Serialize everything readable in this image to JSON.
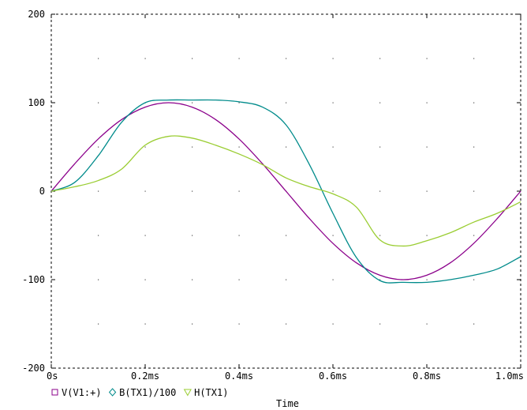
{
  "chart_data": {
    "type": "line",
    "xlabel": "Time",
    "x_unit": "ms",
    "xlim": [
      0,
      1.0
    ],
    "ylim": [
      -200,
      200
    ],
    "x_ticks": [
      0,
      0.2,
      0.4,
      0.6,
      0.8,
      1.0
    ],
    "x_tick_labels": [
      "0s",
      "0.2ms",
      "0.4ms",
      "0.6ms",
      "0.8ms",
      "1.0ms"
    ],
    "y_ticks": [
      -200,
      -100,
      0,
      100,
      200
    ],
    "y_tick_labels": [
      "-200",
      "-100",
      "0",
      "100",
      "200"
    ],
    "grid": "dotted",
    "frame_style": "dashed",
    "legend_position": "bottom-left",
    "series": [
      {
        "name": "V(V1:+)",
        "color": "#8b008b",
        "marker": "square",
        "x": [
          0,
          0.05,
          0.1,
          0.15,
          0.2,
          0.25,
          0.3,
          0.35,
          0.4,
          0.45,
          0.5,
          0.55,
          0.6,
          0.65,
          0.7,
          0.75,
          0.8,
          0.85,
          0.9,
          0.95,
          1.0
        ],
        "values": [
          0,
          31,
          59,
          81,
          95,
          100,
          95,
          81,
          59,
          31,
          0,
          -31,
          -59,
          -81,
          -95,
          -100,
          -95,
          -81,
          -59,
          -31,
          0
        ]
      },
      {
        "name": "B(TX1)/100",
        "color": "#008b8b",
        "marker": "diamond",
        "x": [
          0,
          0.05,
          0.1,
          0.15,
          0.2,
          0.25,
          0.3,
          0.35,
          0.4,
          0.45,
          0.5,
          0.55,
          0.6,
          0.65,
          0.7,
          0.75,
          0.8,
          0.85,
          0.9,
          0.95,
          1.0
        ],
        "values": [
          0,
          10,
          40,
          78,
          100,
          103,
          103,
          103,
          101,
          95,
          75,
          30,
          -25,
          -75,
          -101,
          -103,
          -103,
          -100,
          -95,
          -88,
          -74
        ]
      },
      {
        "name": "H(TX1)",
        "color": "#9acd32",
        "marker": "triangle",
        "x": [
          0,
          0.05,
          0.1,
          0.15,
          0.2,
          0.25,
          0.3,
          0.35,
          0.4,
          0.45,
          0.5,
          0.55,
          0.6,
          0.65,
          0.7,
          0.75,
          0.8,
          0.85,
          0.9,
          0.95,
          1.0
        ],
        "values": [
          0,
          5,
          12,
          25,
          52,
          62,
          60,
          52,
          42,
          30,
          15,
          5,
          -3,
          -18,
          -55,
          -62,
          -56,
          -47,
          -35,
          -25,
          -12
        ]
      }
    ]
  }
}
